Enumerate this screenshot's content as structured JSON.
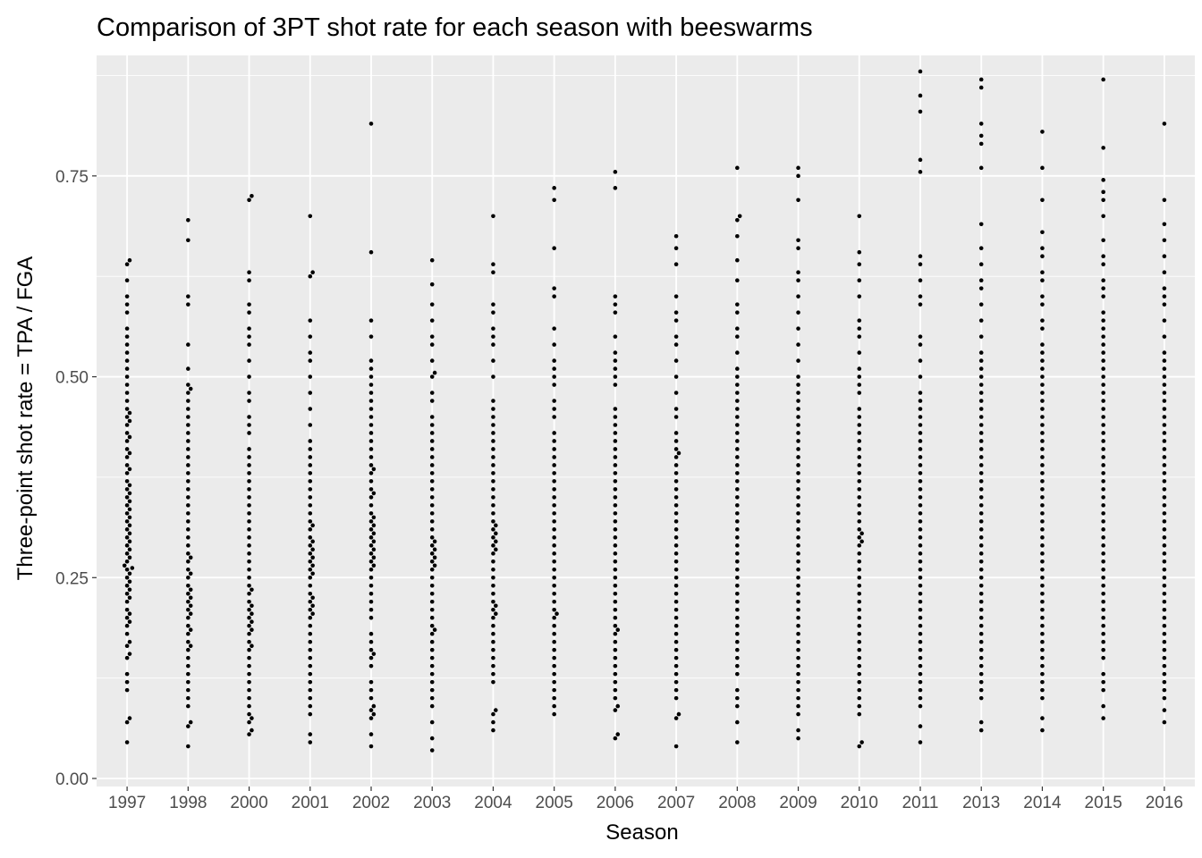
{
  "chart_data": {
    "type": "scatter",
    "style": "beeswarm",
    "title": "Comparison of 3PT shot rate for each season with beeswarms",
    "xlabel": "Season",
    "ylabel": "Three-point shot rate = TPA / FGA",
    "categories": [
      "1997",
      "1998",
      "2000",
      "2001",
      "2002",
      "2003",
      "2004",
      "2005",
      "2006",
      "2007",
      "2008",
      "2009",
      "2010",
      "2011",
      "2013",
      "2014",
      "2015",
      "2016"
    ],
    "ylim": [
      -0.01,
      0.9
    ],
    "y_ticks": [
      0.0,
      0.25,
      0.5,
      0.75
    ],
    "y_tick_labels": [
      "0.00",
      "0.25",
      "0.50",
      "0.75"
    ],
    "point_color": "#000000",
    "panel_background": "#ebebeb",
    "grid_color": "#ffffff",
    "grid": true,
    "legend": "none",
    "series": [
      {
        "category": "1997",
        "values": [
          0.045,
          0.07,
          0.075,
          0.11,
          0.12,
          0.13,
          0.15,
          0.155,
          0.165,
          0.17,
          0.18,
          0.19,
          0.195,
          0.2,
          0.205,
          0.21,
          0.22,
          0.225,
          0.23,
          0.235,
          0.24,
          0.245,
          0.25,
          0.255,
          0.26,
          0.262,
          0.265,
          0.27,
          0.275,
          0.28,
          0.285,
          0.29,
          0.295,
          0.3,
          0.305,
          0.31,
          0.315,
          0.32,
          0.325,
          0.33,
          0.335,
          0.34,
          0.345,
          0.35,
          0.355,
          0.36,
          0.365,
          0.37,
          0.38,
          0.385,
          0.39,
          0.4,
          0.405,
          0.41,
          0.42,
          0.425,
          0.43,
          0.44,
          0.445,
          0.45,
          0.455,
          0.46,
          0.47,
          0.48,
          0.49,
          0.5,
          0.51,
          0.52,
          0.53,
          0.54,
          0.55,
          0.56,
          0.58,
          0.59,
          0.6,
          0.62,
          0.64,
          0.645
        ]
      },
      {
        "category": "1998",
        "values": [
          0.04,
          0.065,
          0.07,
          0.09,
          0.1,
          0.11,
          0.12,
          0.13,
          0.14,
          0.15,
          0.16,
          0.165,
          0.17,
          0.18,
          0.185,
          0.19,
          0.2,
          0.205,
          0.21,
          0.215,
          0.22,
          0.225,
          0.23,
          0.235,
          0.24,
          0.25,
          0.255,
          0.26,
          0.27,
          0.275,
          0.28,
          0.29,
          0.3,
          0.31,
          0.32,
          0.33,
          0.34,
          0.35,
          0.36,
          0.37,
          0.38,
          0.39,
          0.4,
          0.41,
          0.42,
          0.43,
          0.44,
          0.45,
          0.46,
          0.47,
          0.48,
          0.485,
          0.49,
          0.51,
          0.54,
          0.59,
          0.6,
          0.67,
          0.695
        ]
      },
      {
        "category": "2000",
        "values": [
          0.055,
          0.06,
          0.07,
          0.075,
          0.08,
          0.09,
          0.1,
          0.11,
          0.12,
          0.13,
          0.14,
          0.15,
          0.16,
          0.165,
          0.17,
          0.18,
          0.185,
          0.19,
          0.195,
          0.2,
          0.205,
          0.21,
          0.215,
          0.22,
          0.23,
          0.235,
          0.24,
          0.25,
          0.26,
          0.27,
          0.28,
          0.29,
          0.3,
          0.31,
          0.32,
          0.33,
          0.34,
          0.35,
          0.36,
          0.37,
          0.38,
          0.39,
          0.4,
          0.41,
          0.43,
          0.44,
          0.45,
          0.47,
          0.48,
          0.5,
          0.52,
          0.54,
          0.55,
          0.56,
          0.58,
          0.59,
          0.62,
          0.63,
          0.72,
          0.725
        ]
      },
      {
        "category": "2001",
        "values": [
          0.045,
          0.055,
          0.08,
          0.09,
          0.1,
          0.11,
          0.12,
          0.13,
          0.14,
          0.15,
          0.16,
          0.17,
          0.18,
          0.19,
          0.2,
          0.205,
          0.21,
          0.215,
          0.22,
          0.225,
          0.23,
          0.24,
          0.25,
          0.255,
          0.26,
          0.265,
          0.27,
          0.275,
          0.28,
          0.285,
          0.29,
          0.295,
          0.3,
          0.31,
          0.315,
          0.32,
          0.33,
          0.34,
          0.35,
          0.36,
          0.37,
          0.38,
          0.39,
          0.4,
          0.41,
          0.42,
          0.44,
          0.46,
          0.48,
          0.5,
          0.52,
          0.53,
          0.55,
          0.57,
          0.625,
          0.63,
          0.7
        ]
      },
      {
        "category": "2002",
        "values": [
          0.04,
          0.055,
          0.075,
          0.08,
          0.085,
          0.09,
          0.1,
          0.11,
          0.12,
          0.14,
          0.15,
          0.155,
          0.16,
          0.17,
          0.18,
          0.2,
          0.21,
          0.22,
          0.23,
          0.24,
          0.25,
          0.26,
          0.265,
          0.27,
          0.275,
          0.28,
          0.285,
          0.29,
          0.295,
          0.3,
          0.305,
          0.31,
          0.315,
          0.32,
          0.325,
          0.33,
          0.34,
          0.35,
          0.355,
          0.36,
          0.37,
          0.38,
          0.385,
          0.39,
          0.4,
          0.41,
          0.42,
          0.43,
          0.44,
          0.45,
          0.46,
          0.47,
          0.48,
          0.49,
          0.5,
          0.51,
          0.52,
          0.55,
          0.57,
          0.655,
          0.815
        ]
      },
      {
        "category": "2003",
        "values": [
          0.035,
          0.05,
          0.07,
          0.09,
          0.1,
          0.11,
          0.12,
          0.13,
          0.14,
          0.15,
          0.16,
          0.17,
          0.18,
          0.185,
          0.19,
          0.2,
          0.21,
          0.22,
          0.23,
          0.24,
          0.25,
          0.26,
          0.265,
          0.27,
          0.275,
          0.28,
          0.285,
          0.29,
          0.295,
          0.3,
          0.31,
          0.32,
          0.33,
          0.34,
          0.35,
          0.36,
          0.37,
          0.38,
          0.39,
          0.4,
          0.41,
          0.42,
          0.43,
          0.44,
          0.45,
          0.47,
          0.48,
          0.5,
          0.505,
          0.52,
          0.54,
          0.55,
          0.57,
          0.59,
          0.615,
          0.645
        ]
      },
      {
        "category": "2004",
        "values": [
          0.06,
          0.07,
          0.08,
          0.085,
          0.12,
          0.13,
          0.14,
          0.15,
          0.16,
          0.17,
          0.18,
          0.19,
          0.2,
          0.205,
          0.21,
          0.215,
          0.22,
          0.23,
          0.24,
          0.25,
          0.26,
          0.27,
          0.28,
          0.285,
          0.29,
          0.295,
          0.3,
          0.305,
          0.31,
          0.315,
          0.32,
          0.33,
          0.34,
          0.35,
          0.36,
          0.37,
          0.38,
          0.39,
          0.4,
          0.41,
          0.42,
          0.43,
          0.44,
          0.45,
          0.46,
          0.47,
          0.5,
          0.52,
          0.54,
          0.55,
          0.56,
          0.58,
          0.59,
          0.63,
          0.64,
          0.7
        ]
      },
      {
        "category": "2005",
        "values": [
          0.08,
          0.09,
          0.1,
          0.11,
          0.12,
          0.13,
          0.14,
          0.15,
          0.16,
          0.17,
          0.18,
          0.19,
          0.2,
          0.205,
          0.21,
          0.22,
          0.23,
          0.24,
          0.25,
          0.26,
          0.27,
          0.28,
          0.29,
          0.3,
          0.31,
          0.32,
          0.33,
          0.34,
          0.35,
          0.36,
          0.37,
          0.38,
          0.39,
          0.4,
          0.41,
          0.42,
          0.43,
          0.45,
          0.46,
          0.47,
          0.49,
          0.5,
          0.51,
          0.52,
          0.54,
          0.56,
          0.6,
          0.61,
          0.66,
          0.72,
          0.735
        ]
      },
      {
        "category": "2006",
        "values": [
          0.05,
          0.055,
          0.085,
          0.09,
          0.1,
          0.11,
          0.12,
          0.13,
          0.14,
          0.15,
          0.16,
          0.17,
          0.18,
          0.185,
          0.19,
          0.2,
          0.21,
          0.22,
          0.23,
          0.24,
          0.25,
          0.26,
          0.27,
          0.28,
          0.29,
          0.3,
          0.31,
          0.32,
          0.33,
          0.34,
          0.35,
          0.36,
          0.37,
          0.38,
          0.39,
          0.4,
          0.41,
          0.42,
          0.43,
          0.44,
          0.45,
          0.46,
          0.49,
          0.5,
          0.51,
          0.52,
          0.53,
          0.55,
          0.58,
          0.59,
          0.6,
          0.735,
          0.755
        ]
      },
      {
        "category": "2007",
        "values": [
          0.04,
          0.075,
          0.08,
          0.1,
          0.11,
          0.12,
          0.13,
          0.14,
          0.15,
          0.16,
          0.17,
          0.18,
          0.19,
          0.2,
          0.21,
          0.22,
          0.23,
          0.24,
          0.25,
          0.26,
          0.27,
          0.28,
          0.29,
          0.3,
          0.31,
          0.32,
          0.33,
          0.34,
          0.35,
          0.36,
          0.37,
          0.38,
          0.39,
          0.4,
          0.405,
          0.41,
          0.42,
          0.43,
          0.45,
          0.46,
          0.48,
          0.5,
          0.52,
          0.54,
          0.55,
          0.57,
          0.58,
          0.6,
          0.64,
          0.66,
          0.675
        ]
      },
      {
        "category": "2008",
        "values": [
          0.045,
          0.07,
          0.09,
          0.1,
          0.11,
          0.13,
          0.14,
          0.15,
          0.16,
          0.17,
          0.18,
          0.19,
          0.2,
          0.21,
          0.22,
          0.23,
          0.24,
          0.25,
          0.26,
          0.27,
          0.28,
          0.29,
          0.3,
          0.31,
          0.32,
          0.33,
          0.34,
          0.35,
          0.36,
          0.37,
          0.38,
          0.39,
          0.4,
          0.41,
          0.42,
          0.43,
          0.44,
          0.45,
          0.46,
          0.47,
          0.48,
          0.49,
          0.5,
          0.51,
          0.53,
          0.55,
          0.56,
          0.58,
          0.59,
          0.62,
          0.645,
          0.675,
          0.695,
          0.7,
          0.76
        ]
      },
      {
        "category": "2009",
        "values": [
          0.05,
          0.06,
          0.08,
          0.09,
          0.1,
          0.11,
          0.12,
          0.13,
          0.14,
          0.15,
          0.16,
          0.17,
          0.18,
          0.19,
          0.2,
          0.21,
          0.22,
          0.23,
          0.24,
          0.25,
          0.26,
          0.27,
          0.28,
          0.29,
          0.3,
          0.31,
          0.32,
          0.33,
          0.34,
          0.35,
          0.36,
          0.37,
          0.38,
          0.39,
          0.4,
          0.41,
          0.42,
          0.43,
          0.44,
          0.45,
          0.46,
          0.47,
          0.48,
          0.49,
          0.5,
          0.52,
          0.54,
          0.56,
          0.58,
          0.6,
          0.62,
          0.63,
          0.66,
          0.67,
          0.72,
          0.75,
          0.76
        ]
      },
      {
        "category": "2010",
        "values": [
          0.04,
          0.045,
          0.08,
          0.09,
          0.1,
          0.11,
          0.12,
          0.13,
          0.14,
          0.15,
          0.16,
          0.17,
          0.18,
          0.19,
          0.2,
          0.21,
          0.22,
          0.23,
          0.24,
          0.25,
          0.26,
          0.27,
          0.28,
          0.29,
          0.295,
          0.3,
          0.305,
          0.31,
          0.32,
          0.33,
          0.34,
          0.35,
          0.36,
          0.37,
          0.38,
          0.39,
          0.4,
          0.41,
          0.42,
          0.43,
          0.44,
          0.45,
          0.46,
          0.48,
          0.49,
          0.5,
          0.51,
          0.53,
          0.55,
          0.56,
          0.57,
          0.6,
          0.62,
          0.64,
          0.655,
          0.7
        ]
      },
      {
        "category": "2011",
        "values": [
          0.045,
          0.065,
          0.09,
          0.1,
          0.11,
          0.12,
          0.13,
          0.14,
          0.15,
          0.16,
          0.17,
          0.18,
          0.19,
          0.2,
          0.21,
          0.22,
          0.23,
          0.24,
          0.25,
          0.26,
          0.27,
          0.28,
          0.29,
          0.3,
          0.31,
          0.32,
          0.33,
          0.34,
          0.35,
          0.36,
          0.37,
          0.38,
          0.39,
          0.4,
          0.41,
          0.42,
          0.43,
          0.44,
          0.45,
          0.46,
          0.47,
          0.48,
          0.5,
          0.52,
          0.54,
          0.55,
          0.59,
          0.6,
          0.62,
          0.64,
          0.65,
          0.755,
          0.77,
          0.83,
          0.85,
          0.88
        ]
      },
      {
        "category": "2013",
        "values": [
          0.06,
          0.07,
          0.1,
          0.11,
          0.12,
          0.13,
          0.14,
          0.15,
          0.16,
          0.17,
          0.18,
          0.19,
          0.2,
          0.21,
          0.22,
          0.23,
          0.24,
          0.25,
          0.26,
          0.27,
          0.28,
          0.29,
          0.3,
          0.31,
          0.32,
          0.33,
          0.34,
          0.35,
          0.36,
          0.37,
          0.38,
          0.39,
          0.4,
          0.41,
          0.42,
          0.43,
          0.44,
          0.45,
          0.46,
          0.47,
          0.48,
          0.49,
          0.5,
          0.51,
          0.52,
          0.53,
          0.55,
          0.57,
          0.59,
          0.61,
          0.62,
          0.64,
          0.66,
          0.69,
          0.76,
          0.79,
          0.8,
          0.815,
          0.86,
          0.87
        ]
      },
      {
        "category": "2014",
        "values": [
          0.06,
          0.075,
          0.1,
          0.11,
          0.12,
          0.13,
          0.14,
          0.15,
          0.16,
          0.17,
          0.18,
          0.19,
          0.2,
          0.21,
          0.22,
          0.23,
          0.24,
          0.25,
          0.26,
          0.27,
          0.28,
          0.29,
          0.3,
          0.31,
          0.32,
          0.33,
          0.34,
          0.35,
          0.36,
          0.37,
          0.38,
          0.39,
          0.4,
          0.41,
          0.42,
          0.43,
          0.44,
          0.45,
          0.46,
          0.47,
          0.48,
          0.49,
          0.5,
          0.51,
          0.52,
          0.53,
          0.54,
          0.56,
          0.57,
          0.59,
          0.6,
          0.62,
          0.63,
          0.65,
          0.66,
          0.68,
          0.72,
          0.76,
          0.805
        ]
      },
      {
        "category": "2015",
        "values": [
          0.075,
          0.09,
          0.11,
          0.12,
          0.13,
          0.15,
          0.16,
          0.17,
          0.18,
          0.19,
          0.2,
          0.21,
          0.22,
          0.23,
          0.24,
          0.25,
          0.26,
          0.27,
          0.28,
          0.29,
          0.3,
          0.31,
          0.32,
          0.33,
          0.34,
          0.35,
          0.36,
          0.37,
          0.38,
          0.39,
          0.4,
          0.41,
          0.42,
          0.43,
          0.44,
          0.45,
          0.46,
          0.47,
          0.48,
          0.49,
          0.5,
          0.51,
          0.52,
          0.53,
          0.54,
          0.55,
          0.56,
          0.57,
          0.58,
          0.6,
          0.61,
          0.62,
          0.64,
          0.65,
          0.67,
          0.7,
          0.72,
          0.73,
          0.745,
          0.785,
          0.87
        ]
      },
      {
        "category": "2016",
        "values": [
          0.07,
          0.085,
          0.1,
          0.11,
          0.12,
          0.13,
          0.14,
          0.15,
          0.16,
          0.17,
          0.18,
          0.19,
          0.2,
          0.21,
          0.22,
          0.23,
          0.24,
          0.25,
          0.26,
          0.27,
          0.28,
          0.29,
          0.3,
          0.31,
          0.32,
          0.33,
          0.34,
          0.35,
          0.36,
          0.37,
          0.38,
          0.39,
          0.4,
          0.41,
          0.42,
          0.43,
          0.44,
          0.45,
          0.46,
          0.47,
          0.48,
          0.49,
          0.5,
          0.51,
          0.52,
          0.53,
          0.55,
          0.57,
          0.59,
          0.6,
          0.61,
          0.63,
          0.65,
          0.67,
          0.69,
          0.72,
          0.815
        ]
      }
    ]
  }
}
